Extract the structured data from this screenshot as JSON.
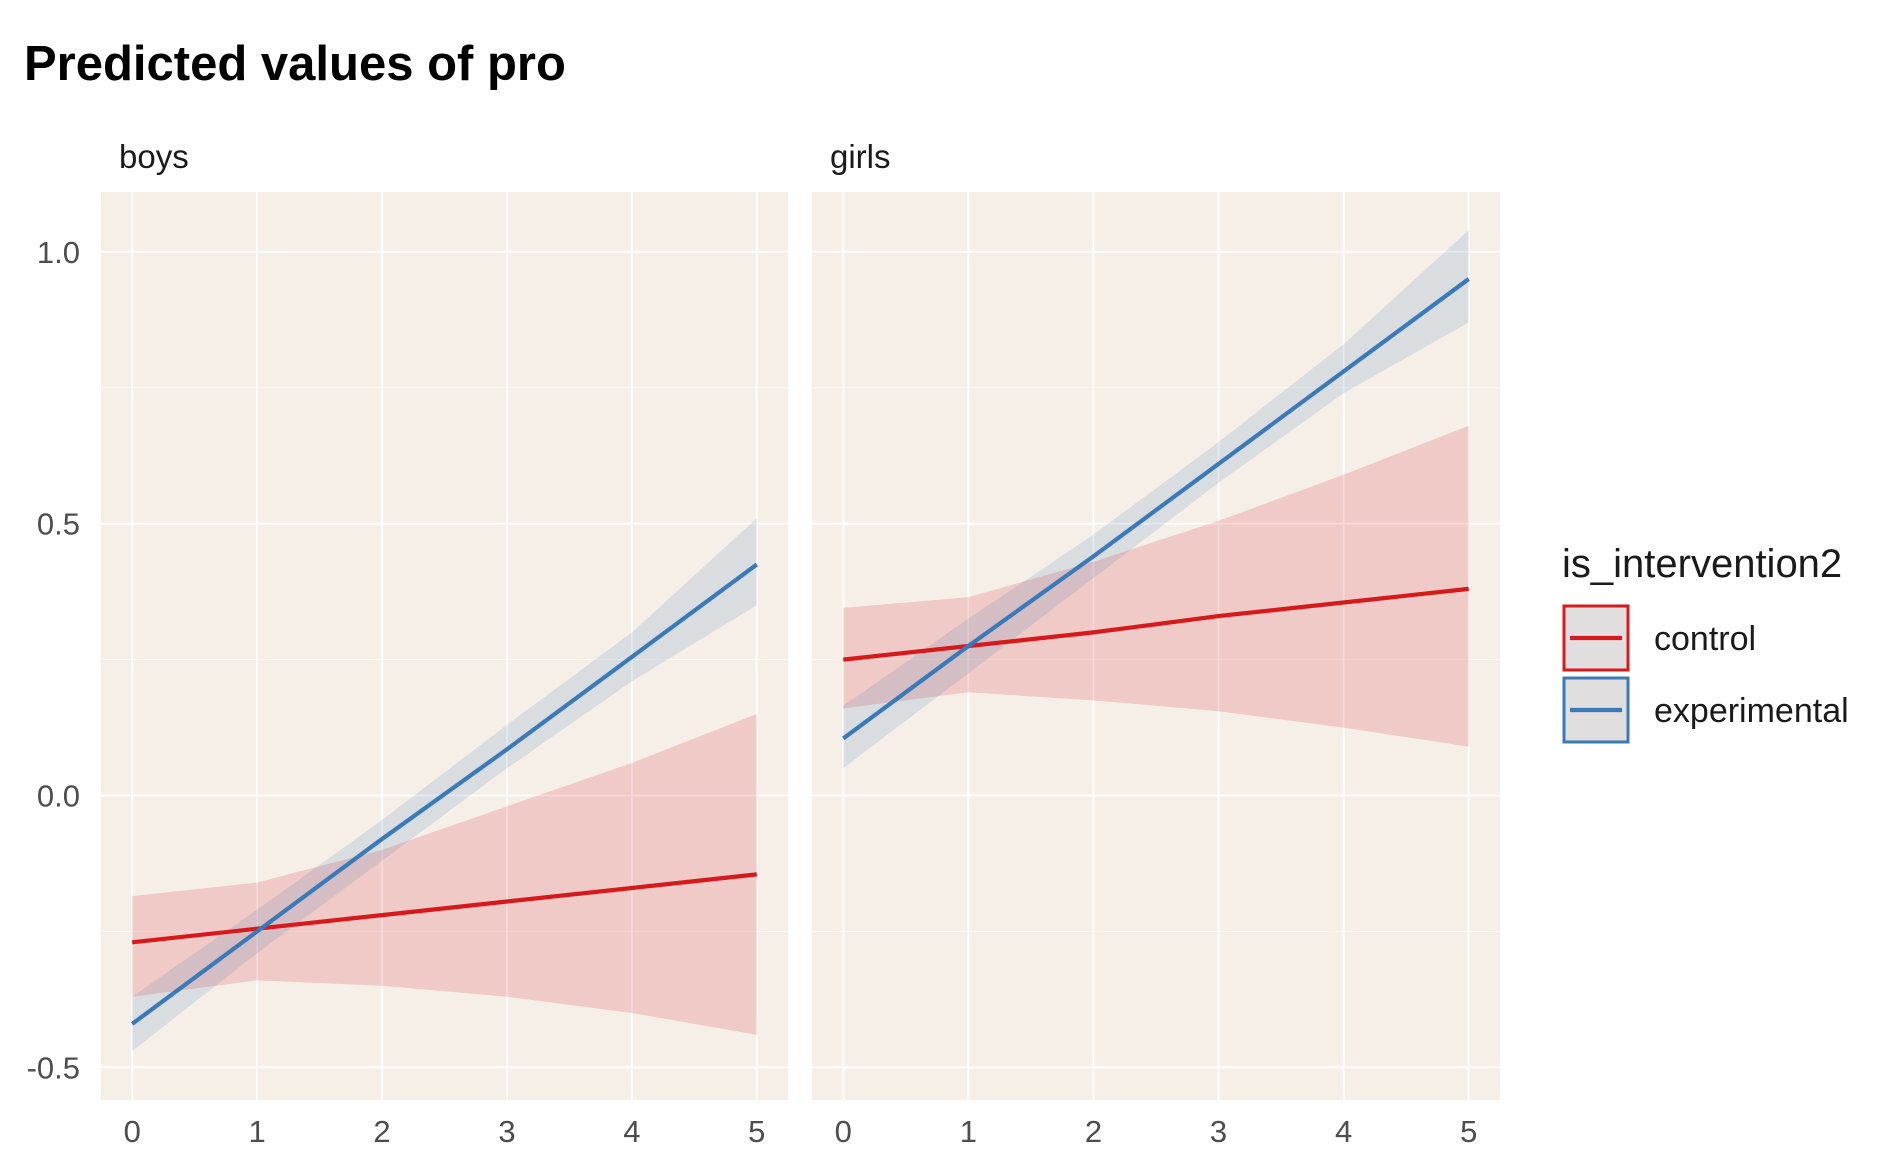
{
  "chart_data": {
    "type": "line",
    "title": "Predicted values of pro",
    "xlabel": "",
    "ylabel": "",
    "x_ticks": [
      "0",
      "1",
      "2",
      "3",
      "4",
      "5"
    ],
    "y_ticks": [
      "-0.5",
      "0.0",
      "0.5",
      "1.0"
    ],
    "xlim": [
      -0.25,
      5.25
    ],
    "ylim": [
      -0.56,
      1.11
    ],
    "grid": true,
    "panel_background": "#f5efe8",
    "legend": {
      "title": "is_intervention2",
      "position": "right",
      "entries": [
        {
          "label": "control",
          "color": "#d7191c"
        },
        {
          "label": "experimental",
          "color": "#3a7ab8"
        }
      ]
    },
    "panels": [
      {
        "label": "boys",
        "series": [
          {
            "name": "control",
            "color": "#d7191c",
            "x": [
              0,
              1,
              2,
              3,
              4,
              5
            ],
            "y": [
              -0.27,
              -0.245,
              -0.22,
              -0.195,
              -0.17,
              -0.145
            ],
            "ci_low": [
              -0.37,
              -0.34,
              -0.35,
              -0.37,
              -0.4,
              -0.44
            ],
            "ci_high": [
              -0.185,
              -0.16,
              -0.1,
              -0.02,
              0.06,
              0.15
            ]
          },
          {
            "name": "experimental",
            "color": "#3a7ab8",
            "x": [
              0,
              1,
              2,
              3,
              4,
              5
            ],
            "y": [
              -0.42,
              -0.25,
              -0.08,
              0.085,
              0.255,
              0.425
            ],
            "ci_low": [
              -0.47,
              -0.29,
              -0.12,
              0.05,
              0.21,
              0.35
            ],
            "ci_high": [
              -0.37,
              -0.21,
              -0.045,
              0.13,
              0.3,
              0.51
            ]
          }
        ]
      },
      {
        "label": "girls",
        "series": [
          {
            "name": "control",
            "color": "#d7191c",
            "x": [
              0,
              1,
              2,
              3,
              4,
              5
            ],
            "y": [
              0.25,
              0.275,
              0.3,
              0.33,
              0.355,
              0.38
            ],
            "ci_low": [
              0.16,
              0.19,
              0.175,
              0.155,
              0.125,
              0.09
            ],
            "ci_high": [
              0.345,
              0.365,
              0.43,
              0.505,
              0.59,
              0.68
            ]
          },
          {
            "name": "experimental",
            "color": "#3a7ab8",
            "x": [
              0,
              1,
              2,
              3,
              4,
              5
            ],
            "y": [
              0.105,
              0.275,
              0.44,
              0.61,
              0.78,
              0.95
            ],
            "ci_low": [
              0.05,
              0.225,
              0.4,
              0.575,
              0.74,
              0.87
            ],
            "ci_high": [
              0.165,
              0.325,
              0.48,
              0.65,
              0.83,
              1.04
            ]
          }
        ]
      }
    ]
  }
}
